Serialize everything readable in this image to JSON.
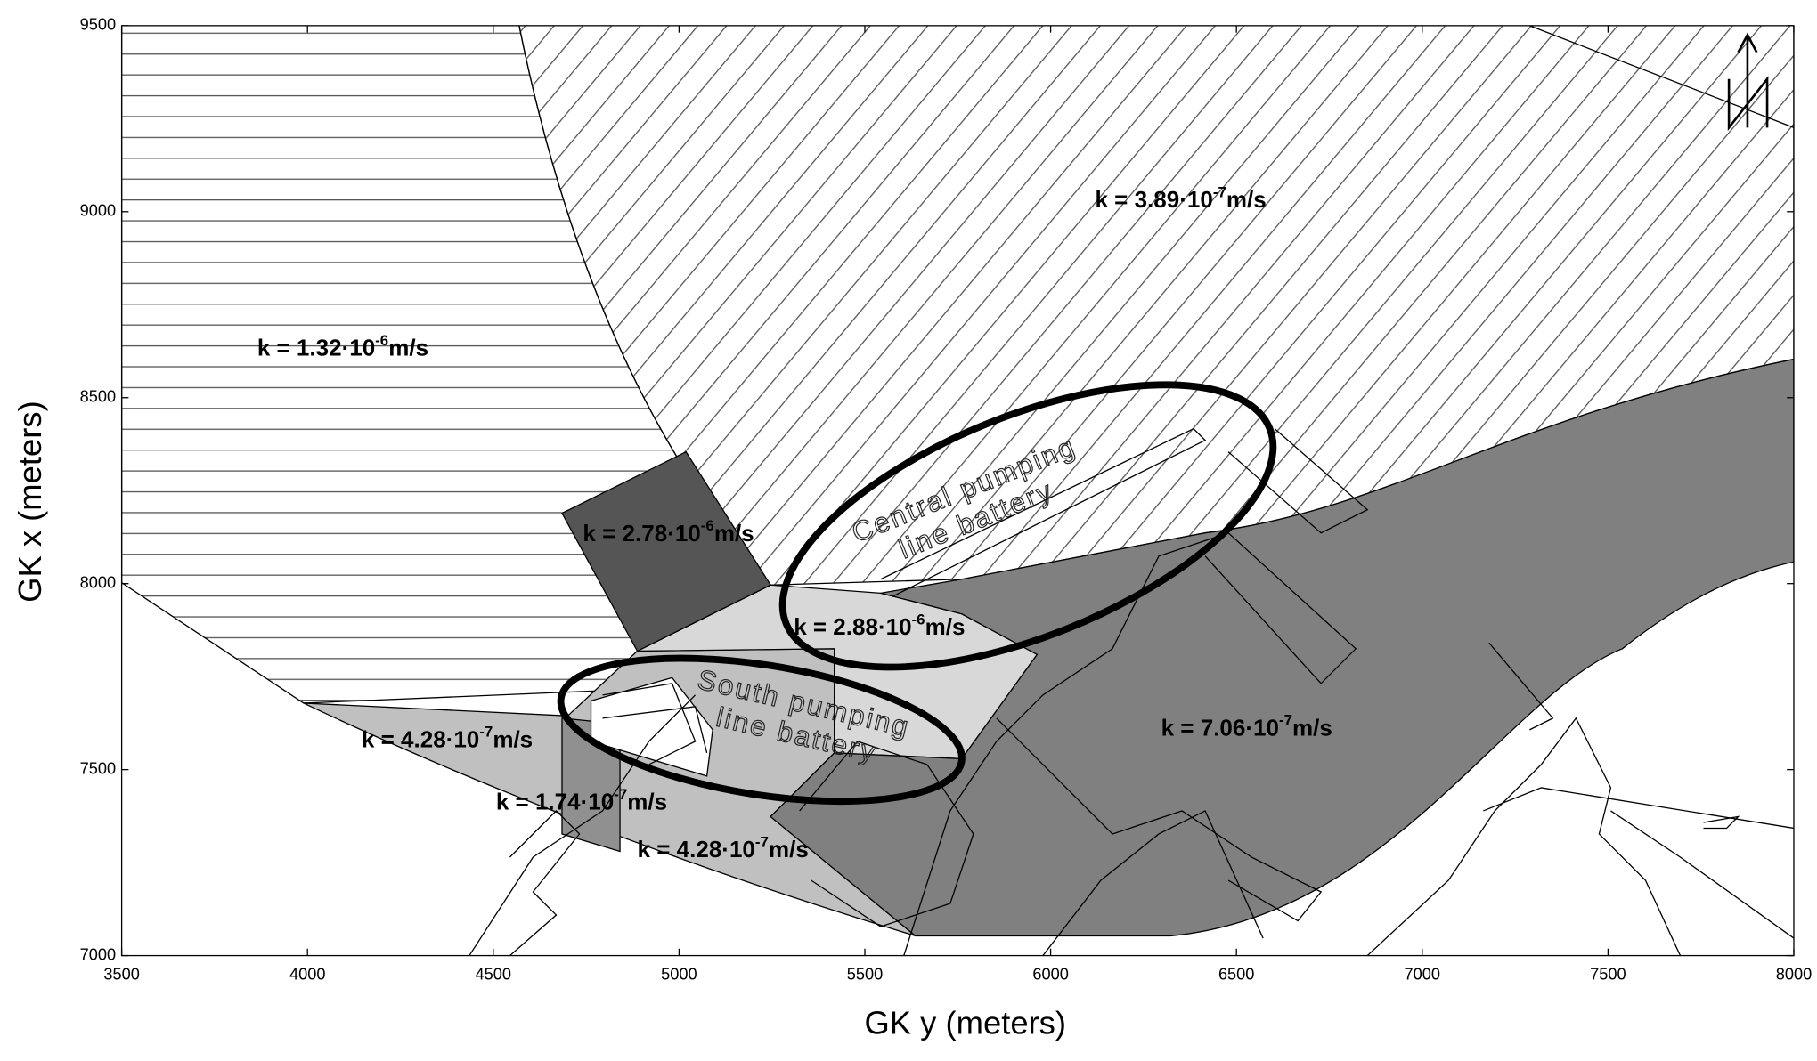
{
  "chart_data": {
    "type": "map",
    "xlabel": "GK y (meters)",
    "ylabel": "GK x (meters)",
    "xlim": [
      3500,
      8000
    ],
    "ylim": [
      7000,
      9500
    ],
    "xticks": [
      3500,
      4000,
      4500,
      5000,
      5500,
      6000,
      6500,
      7000,
      7500,
      8000
    ],
    "yticks": [
      7000,
      7500,
      8000,
      8500,
      9000,
      9500
    ],
    "zones": [
      {
        "text": "k = 3.89·10",
        "exponent": "-7",
        "unit": "m/s"
      },
      {
        "text": "k = 1.32·10",
        "exponent": "-6",
        "unit": "m/s"
      },
      {
        "text": "k = 2.78·10",
        "exponent": "-6",
        "unit": "m/s"
      },
      {
        "text": "k = 2.88·10",
        "exponent": "-6",
        "unit": "m/s"
      },
      {
        "text": "k = 4.28·10",
        "exponent": "-7",
        "unit": "m/s"
      },
      {
        "text": "k = 1.74·10",
        "exponent": "-7",
        "unit": "m/s"
      },
      {
        "text": "k = 4.28·10",
        "exponent": "-7",
        "unit": "m/s"
      },
      {
        "text": "k = 7.06·10",
        "exponent": "-7",
        "unit": "m/s"
      }
    ],
    "annotations": [
      {
        "lines": [
          "Central pumping",
          "line battery"
        ]
      },
      {
        "lines": [
          "South pumping",
          "line battery"
        ]
      }
    ],
    "north": "N"
  }
}
